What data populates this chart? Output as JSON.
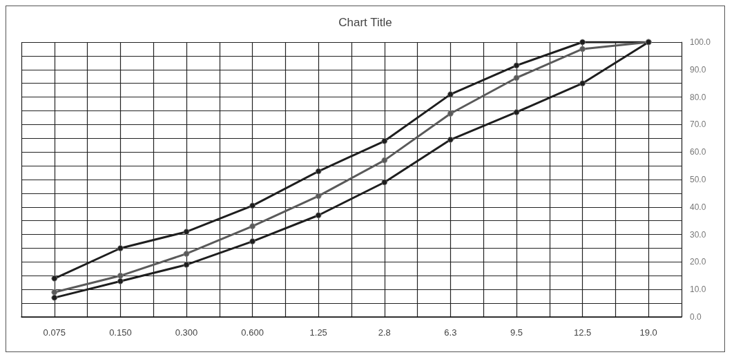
{
  "chart_data": {
    "type": "line",
    "title": "Chart Title",
    "categories": [
      "0.075",
      "0.150",
      "0.300",
      "0.600",
      "1.25",
      "2.8",
      "6.3",
      "9.5",
      "12.5",
      "19.0"
    ],
    "series": [
      {
        "color": "#1e1e1e",
        "values": [
          14,
          25,
          31,
          40.5,
          53,
          64,
          81,
          91.5,
          100,
          100
        ]
      },
      {
        "color": "#5a5a5a",
        "values": [
          9,
          15,
          23,
          33,
          44,
          57,
          74,
          87,
          97.5,
          100
        ]
      },
      {
        "color": "#1e1e1e",
        "values": [
          7,
          13,
          19,
          27.5,
          37,
          49,
          64.5,
          74.5,
          85,
          100
        ]
      }
    ],
    "ylim": [
      0,
      100
    ],
    "yticks": [
      {
        "value": 0,
        "label": "0.0"
      },
      {
        "value": 5,
        "label": null
      },
      {
        "value": 10,
        "label": "10.0"
      },
      {
        "value": 15,
        "label": null
      },
      {
        "value": 20,
        "label": "20.0"
      },
      {
        "value": 25,
        "label": null
      },
      {
        "value": 30,
        "label": "30.0"
      },
      {
        "value": 35,
        "label": null
      },
      {
        "value": 40,
        "label": "40.0"
      },
      {
        "value": 45,
        "label": null
      },
      {
        "value": 50,
        "label": "50.0"
      },
      {
        "value": 55,
        "label": null
      },
      {
        "value": 60,
        "label": "60.0"
      },
      {
        "value": 65,
        "label": null
      },
      {
        "value": 70,
        "label": "70.0"
      },
      {
        "value": 75,
        "label": null
      },
      {
        "value": 80,
        "label": "80.0"
      },
      {
        "value": 85,
        "label": null
      },
      {
        "value": 90,
        "label": "90.0"
      },
      {
        "value": 95,
        "label": null
      },
      {
        "value": 100,
        "label": "100.0"
      }
    ],
    "grid": true,
    "marker": "circle",
    "line_style": "solid"
  }
}
